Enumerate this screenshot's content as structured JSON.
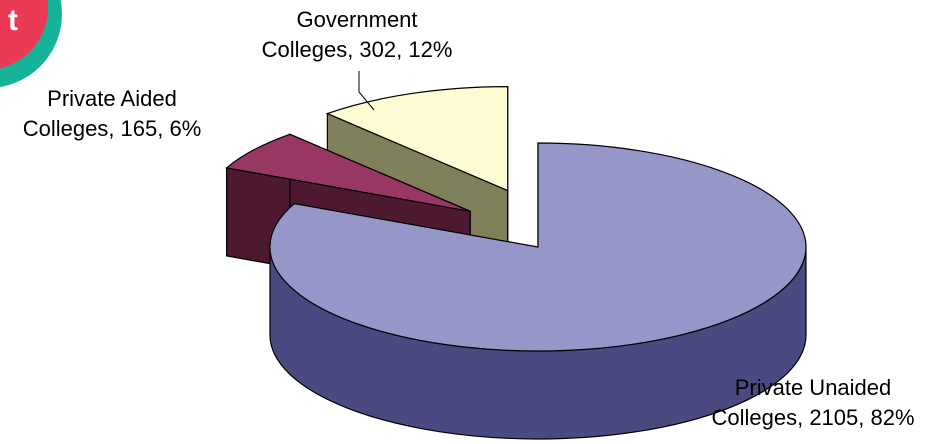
{
  "badge": {
    "text": "t",
    "ring_color": "#16b39a",
    "fill_color": "#ea3a55"
  },
  "chart_data": {
    "type": "pie",
    "style": "3d-exploded",
    "slices": [
      {
        "name": "Private Unaided Colleges",
        "value": 2105,
        "percent": 82,
        "label_line1": "Private Unaided",
        "label_line2": "Colleges, 2105, 82%",
        "top_color": "#9796c9",
        "side_color": "#4b4a80"
      },
      {
        "name": "Private Aided Colleges",
        "value": 165,
        "percent": 6,
        "label_line1": "Private Aided",
        "label_line2": "Colleges, 165, 6%",
        "top_color": "#983763",
        "side_color": "#4d1931"
      },
      {
        "name": "Government Colleges",
        "value": 302,
        "percent": 12,
        "label_line1": "Government",
        "label_line2": "Colleges, 302, 12%",
        "top_color": "#fcfbd2",
        "side_color": "#7f8059"
      }
    ],
    "legend": "none"
  }
}
